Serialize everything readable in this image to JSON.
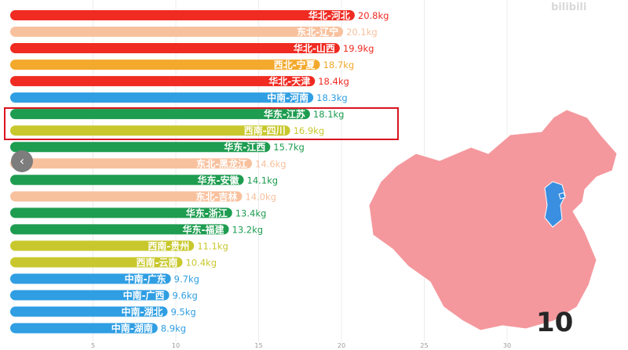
{
  "watermark": "bilibili",
  "frame_counter": "10",
  "nav_arrow_icon": "chevron-left-icon",
  "colors": {
    "华北": "#ef2b22",
    "东北": "#f8c19e",
    "西北": "#f3a92c",
    "中南": "#2f9ee3",
    "华东": "#1e9c50",
    "西南": "#c8c82e",
    "map_fill": "#f4989d",
    "map_highlight": "#3a8fe0",
    "highlight_box": "#d9141f"
  },
  "chart_data": {
    "type": "bar",
    "orientation": "horizontal",
    "title": "",
    "xlabel": "",
    "ylabel": "",
    "unit": "kg",
    "xlim": [
      0,
      31
    ],
    "xticks": [
      5,
      10,
      15,
      20,
      25,
      30
    ],
    "grid": true,
    "categories": [
      "华北-河北",
      "东北-辽宁",
      "华北-山西",
      "西北-宁夏",
      "华北-天津",
      "中南-河南",
      "华东-江苏",
      "西南-四川",
      "华东-江西",
      "东北-黑龙江",
      "华东-安徽",
      "东北-吉林",
      "华东-浙江",
      "华东-福建",
      "西南-贵州",
      "西南-云南",
      "中南-广东",
      "中南-广西",
      "中南-湖北",
      "中南-湖南"
    ],
    "regions": [
      "华北",
      "东北",
      "华北",
      "西北",
      "华北",
      "中南",
      "华东",
      "西南",
      "华东",
      "东北",
      "华东",
      "东北",
      "华东",
      "华东",
      "西南",
      "西南",
      "中南",
      "中南",
      "中南",
      "中南"
    ],
    "values": [
      20.8,
      20.1,
      19.9,
      18.7,
      18.4,
      18.3,
      18.1,
      16.9,
      15.7,
      14.6,
      14.1,
      14.0,
      13.4,
      13.2,
      11.1,
      10.4,
      9.7,
      9.6,
      9.5,
      8.9
    ],
    "value_labels": [
      "20.8kg",
      "20.1kg",
      "19.9kg",
      "18.7kg",
      "18.4kg",
      "18.3kg",
      "18.1kg",
      "16.9kg",
      "15.7kg",
      "14.6kg",
      "14.1kg",
      "14.0kg",
      "13.4kg",
      "13.2kg",
      "11.1kg",
      "10.4kg",
      "9.7kg",
      "9.6kg",
      "9.5kg",
      "8.9kg"
    ],
    "highlighted": [
      "华东-江苏",
      "西南-四川"
    ],
    "map_highlighted_region": "天津"
  }
}
